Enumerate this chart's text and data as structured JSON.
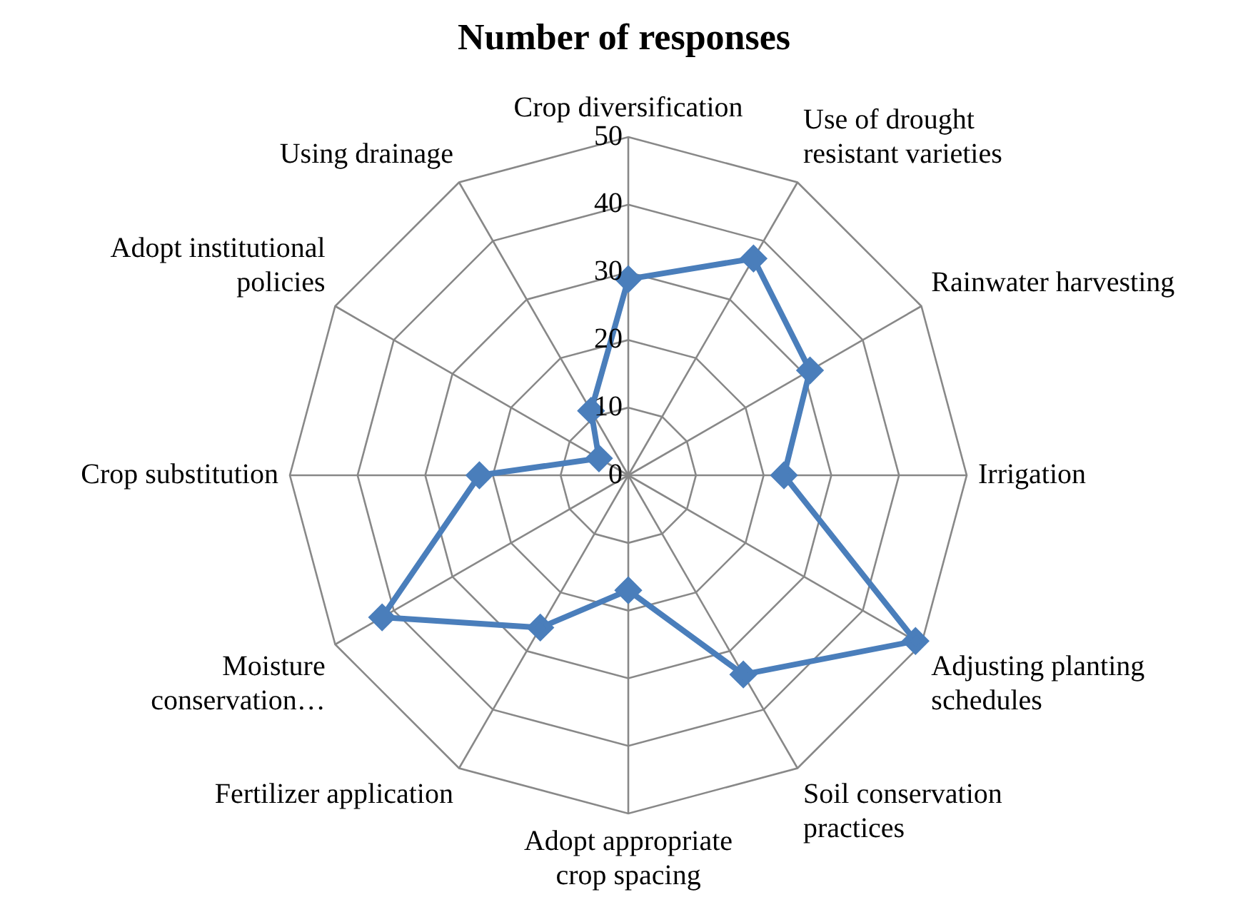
{
  "chart_data": {
    "type": "radar",
    "title": "Number of responses",
    "categories": [
      "Crop diversification",
      "Use of drought\nresistant varieties",
      "Rainwater harvesting",
      "Irrigation",
      "Adjusting planting\nschedules",
      "Soil conservation\npractices",
      "Adopt appropriate\ncrop spacing",
      "Fertilizer application",
      "Moisture\nconservation…",
      "Crop substitution",
      "Adopt institutional\npolicies",
      "Using drainage"
    ],
    "series": [
      {
        "color": "#4a7ebb",
        "values": [
          29,
          37,
          31,
          23,
          49,
          34,
          17,
          26,
          42,
          22,
          5,
          11
        ]
      }
    ],
    "ylim": [
      0,
      50
    ],
    "yticks": [
      0,
      10,
      20,
      30,
      40,
      50
    ],
    "grid": true,
    "legend": false,
    "marker": "diamond",
    "line_style": "solid"
  }
}
